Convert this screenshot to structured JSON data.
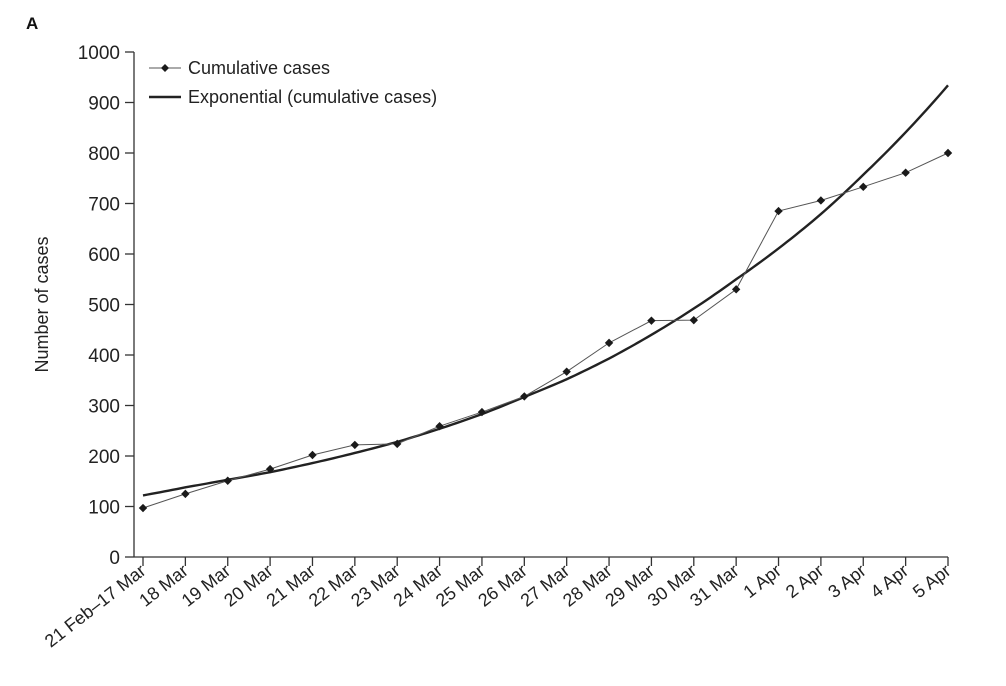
{
  "panel_label": "A",
  "chart_data": {
    "type": "line",
    "xlabel": "",
    "ylabel": "Number of cases",
    "ylim": [
      0,
      1000
    ],
    "yticks": [
      0,
      100,
      200,
      300,
      400,
      500,
      600,
      700,
      800,
      900,
      1000
    ],
    "categories": [
      "21 Feb–17 Mar",
      "18 Mar",
      "19 Mar",
      "20 Mar",
      "21 Mar",
      "22 Mar",
      "23 Mar",
      "24 Mar",
      "25 Mar",
      "26 Mar",
      "27 Mar",
      "28 Mar",
      "29 Mar",
      "30 Mar",
      "31 Mar",
      "1 Apr",
      "2 Apr",
      "3 Apr",
      "4 Apr",
      "5 Apr"
    ],
    "series": [
      {
        "name": "Cumulative cases",
        "style": "line-with-markers",
        "values": [
          97,
          125,
          151,
          174,
          202,
          222,
          224,
          259,
          287,
          318,
          367,
          424,
          468,
          469,
          530,
          685,
          706,
          733,
          761,
          800
        ]
      },
      {
        "name": "Exponential (cumulative cases)",
        "style": "smooth-line",
        "values": [
          122,
          138,
          153,
          168,
          186,
          206,
          228,
          254,
          283,
          317,
          352,
          393,
          440,
          492,
          550,
          611,
          679,
          757,
          841,
          934
        ]
      }
    ],
    "legend": "top-left",
    "grid": false,
    "colors": {
      "line": "#222222",
      "marker": "#1a1a1a",
      "axis": "#333333"
    }
  }
}
